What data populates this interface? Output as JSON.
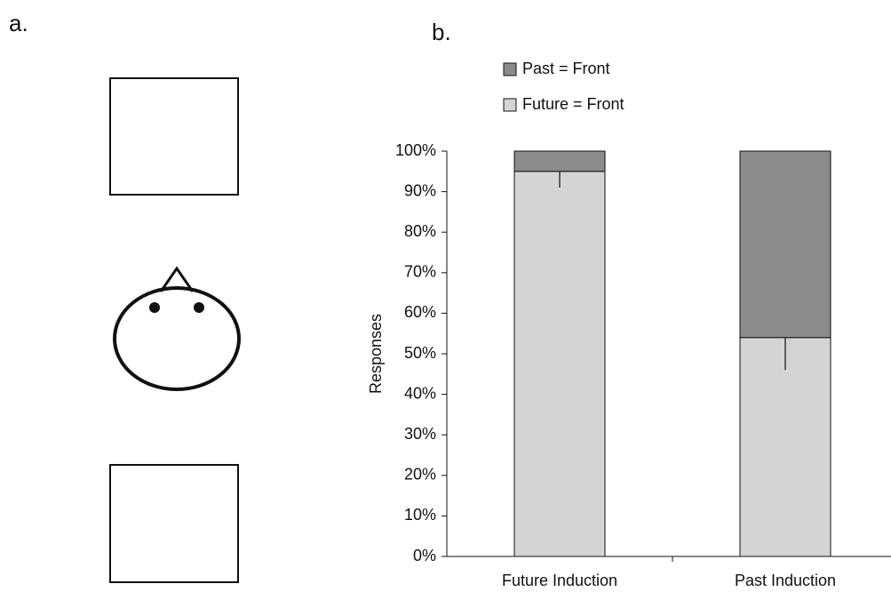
{
  "panel_labels": {
    "a": "a.",
    "b": "b."
  },
  "chart_data": {
    "type": "stacked-bar",
    "y_label": "Responses",
    "categories": [
      "Future Induction",
      "Past Induction"
    ],
    "series": [
      {
        "name": "Future = Front",
        "color": "#d3d4d6",
        "values": [
          95,
          54
        ],
        "errors": [
          4,
          8
        ]
      },
      {
        "name": "Past = Front",
        "color": "#8a8b8d",
        "values": [
          5,
          46
        ]
      }
    ],
    "ylim": [
      0,
      100
    ],
    "yticks": [
      {
        "value": 0,
        "label": "0%"
      },
      {
        "value": 10,
        "label": "10%"
      },
      {
        "value": 20,
        "label": "20%"
      },
      {
        "value": 30,
        "label": "30%"
      },
      {
        "value": 40,
        "label": "40%"
      },
      {
        "value": 50,
        "label": "50%"
      },
      {
        "value": 60,
        "label": "60%"
      },
      {
        "value": 70,
        "label": "70%"
      },
      {
        "value": 80,
        "label": "80%"
      },
      {
        "value": 90,
        "label": "90%"
      },
      {
        "value": 100,
        "label": "100%"
      }
    ],
    "grid": false
  }
}
